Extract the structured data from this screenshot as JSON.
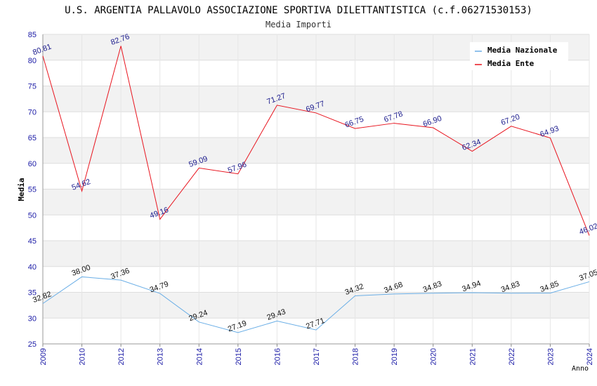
{
  "chart_data": {
    "type": "line",
    "title": "U.S. ARGENTIA PALLAVOLO ASSOCIAZIONE SPORTIVA DILETTANTISTICA (c.f.06271530153)",
    "subtitle": "Media Importi",
    "xlabel": "Anno",
    "ylabel": "Media",
    "ylim": [
      25,
      85
    ],
    "yticks": [
      25,
      30,
      35,
      40,
      45,
      50,
      55,
      60,
      65,
      70,
      75,
      80,
      85
    ],
    "categories": [
      "2009",
      "2010",
      "2012",
      "2013",
      "2014",
      "2015",
      "2016",
      "2017",
      "2018",
      "2019",
      "2020",
      "2021",
      "2022",
      "2023",
      "2024"
    ],
    "series": [
      {
        "name": "Media Nazionale",
        "color": "#6aaee6",
        "values": [
          32.82,
          38.0,
          37.36,
          34.79,
          29.24,
          27.19,
          29.43,
          27.71,
          34.32,
          34.68,
          34.83,
          34.94,
          34.83,
          34.85,
          37.05
        ],
        "labels": [
          "32.82",
          "38.00",
          "37.36",
          "34.79",
          "29.24",
          "27.19",
          "29.43",
          "27.71",
          "34.32",
          "34.68",
          "34.83",
          "34.94",
          "34.83",
          "34.85",
          "37.05"
        ]
      },
      {
        "name": "Media Ente",
        "color": "#e8141e",
        "values": [
          80.81,
          54.62,
          82.76,
          49.16,
          59.09,
          57.96,
          71.27,
          69.77,
          66.75,
          67.78,
          66.9,
          62.34,
          67.2,
          64.93,
          46.02
        ],
        "labels": [
          "80.81",
          "54.62",
          "82.76",
          "49.16",
          "59.09",
          "57.96",
          "71.27",
          "69.77",
          "66.75",
          "67.78",
          "66.90",
          "62.34",
          "67.20",
          "64.93",
          "46.02"
        ]
      }
    ],
    "grid": true,
    "legend": "top-right"
  }
}
